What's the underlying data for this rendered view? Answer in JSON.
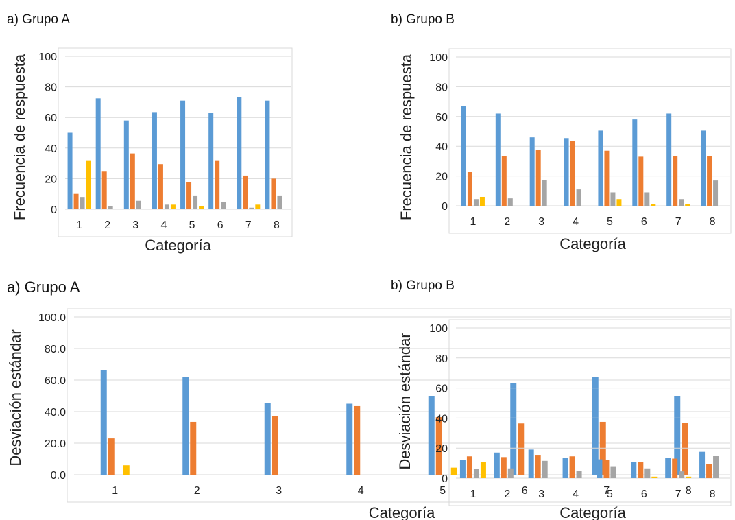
{
  "colors": {
    "series1": "#5b9bd5",
    "series2": "#ed7d31",
    "series3": "#a5a5a5",
    "series4": "#ffc000",
    "grid": "#d9d9d9",
    "frame": "#d9d9d9"
  },
  "chart_data": [
    {
      "type": "bar",
      "title": "a) Grupo A",
      "xlabel": "Categoría",
      "ylabel": "Frecuencia de respuesta",
      "ylim": [
        0,
        100
      ],
      "yticks": [
        "0",
        "20",
        "40",
        "60",
        "80",
        "100"
      ],
      "categories": [
        "1",
        "2",
        "3",
        "4",
        "5",
        "6",
        "7",
        "8"
      ],
      "grid": true,
      "series": [
        {
          "values": [
            50,
            72.5,
            58,
            63.5,
            71,
            63,
            73.5,
            71
          ]
        },
        {
          "values": [
            10,
            25,
            36.5,
            29.5,
            17.5,
            32,
            22,
            20
          ]
        },
        {
          "values": [
            8,
            2,
            5.5,
            3,
            9,
            4.5,
            1,
            9
          ]
        },
        {
          "values": [
            32,
            0,
            0,
            3,
            2,
            0,
            3,
            0
          ]
        }
      ]
    },
    {
      "type": "bar",
      "title": "b) Grupo  B",
      "xlabel": "Categoría",
      "ylabel": "Frecuencia de respuesta",
      "ylim": [
        0,
        100
      ],
      "yticks": [
        "0",
        "20",
        "40",
        "60",
        "80",
        "100"
      ],
      "categories": [
        "1",
        "2",
        "3",
        "4",
        "5",
        "6",
        "7",
        "8"
      ],
      "grid": true,
      "series": [
        {
          "values": [
            67,
            62,
            46,
            45.5,
            50.5,
            58,
            62,
            50.5
          ]
        },
        {
          "values": [
            23,
            33.5,
            37.5,
            43.5,
            37,
            33,
            33.5,
            33.5
          ]
        },
        {
          "values": [
            4.5,
            5,
            17.5,
            11,
            9,
            9,
            4.5,
            17
          ]
        },
        {
          "values": [
            6,
            0,
            0,
            0,
            4.5,
            1,
            1,
            0
          ]
        }
      ]
    },
    {
      "type": "bar",
      "title": "a) Grupo A",
      "xlabel": "Categoría",
      "ylabel": "Desviación estándar",
      "ylim": [
        0,
        100
      ],
      "yticks": [
        "0.0",
        "20.0",
        "40.0",
        "60.0",
        "80.0",
        "100.0"
      ],
      "categories": [
        "1",
        "2",
        "3",
        "4",
        "5",
        "6",
        "7",
        "8"
      ],
      "grid": true,
      "series": [
        {
          "values": [
            66.5,
            62,
            45.5,
            45,
            50,
            58,
            62,
            50
          ]
        },
        {
          "values": [
            23,
            33.5,
            37,
            43.5,
            36.5,
            32.5,
            33.5,
            33
          ]
        },
        {
          "values": [
            0,
            0,
            0,
            0,
            0,
            0,
            0,
            0
          ]
        },
        {
          "values": [
            6,
            0,
            0,
            0,
            4.5,
            0,
            0,
            0
          ]
        }
      ]
    },
    {
      "type": "bar",
      "title": "b) Grupo  B",
      "xlabel": "Categoría",
      "ylabel": "Desviación estándar",
      "ylim": [
        0,
        100
      ],
      "yticks": [
        "0",
        "20",
        "40",
        "60",
        "80",
        "100"
      ],
      "categories": [
        "1",
        "2",
        "3",
        "4",
        "5",
        "6",
        "7",
        "8"
      ],
      "grid": true,
      "series": [
        {
          "values": [
            12,
            17,
            19,
            13.5,
            12.5,
            10.5,
            13.5,
            17.5
          ]
        },
        {
          "values": [
            14.5,
            14,
            15.5,
            14.5,
            12,
            10.5,
            13,
            9.5
          ]
        },
        {
          "values": [
            6,
            6.5,
            11.5,
            5,
            7.5,
            6.5,
            4.5,
            15
          ]
        },
        {
          "values": [
            10.5,
            0,
            0,
            0,
            0,
            1,
            1,
            0
          ]
        }
      ]
    }
  ]
}
